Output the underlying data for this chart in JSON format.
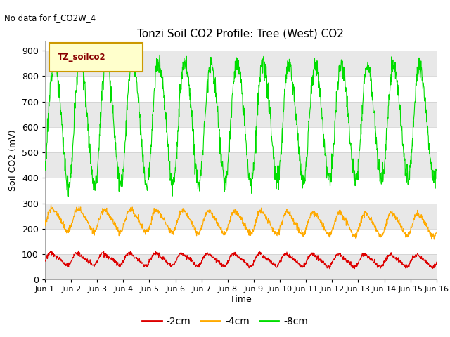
{
  "title": "Tonzi Soil CO2 Profile: Tree (West) CO2",
  "ylabel": "Soil CO2 (mV)",
  "xlabel": "Time",
  "no_data_text": "No data for f_CO2W_4",
  "legend_box_label": "TZ_soilco2",
  "xlim": [
    0,
    15
  ],
  "ylim": [
    0,
    940
  ],
  "yticks": [
    0,
    100,
    200,
    300,
    400,
    500,
    600,
    700,
    800,
    900
  ],
  "xtick_labels": [
    "Jun 1",
    "Jun 2",
    "Jun 3",
    "Jun 4",
    "Jun 5",
    "Jun 6",
    "Jun 7",
    "Jun 8",
    "Jun 9",
    "Jun 10",
    "Jun 11",
    "Jun 12",
    "Jun 13",
    "Jun 14",
    "Jun 15",
    "Jun 16"
  ],
  "band_colors_cycle": [
    "#e8e8e8",
    "#ffffff"
  ],
  "band_ranges": [
    [
      0,
      100
    ],
    [
      100,
      200
    ],
    [
      200,
      300
    ],
    [
      300,
      400
    ],
    [
      400,
      500
    ],
    [
      500,
      600
    ],
    [
      600,
      700
    ],
    [
      700,
      800
    ],
    [
      800,
      900
    ],
    [
      900,
      940
    ]
  ],
  "line_colors": {
    "2cm": "#dd0000",
    "4cm": "#ffaa00",
    "8cm": "#00dd00"
  },
  "line_labels": {
    "2cm": "-2cm",
    "4cm": "-4cm",
    "8cm": "-8cm"
  },
  "background_color": "#ffffff",
  "green_base": 625,
  "green_amp": 245,
  "green_noise": 20,
  "orange_base": 238,
  "orange_amp": 42,
  "orange_noise": 6,
  "red_base": 82,
  "red_amp": 22,
  "red_noise": 4
}
